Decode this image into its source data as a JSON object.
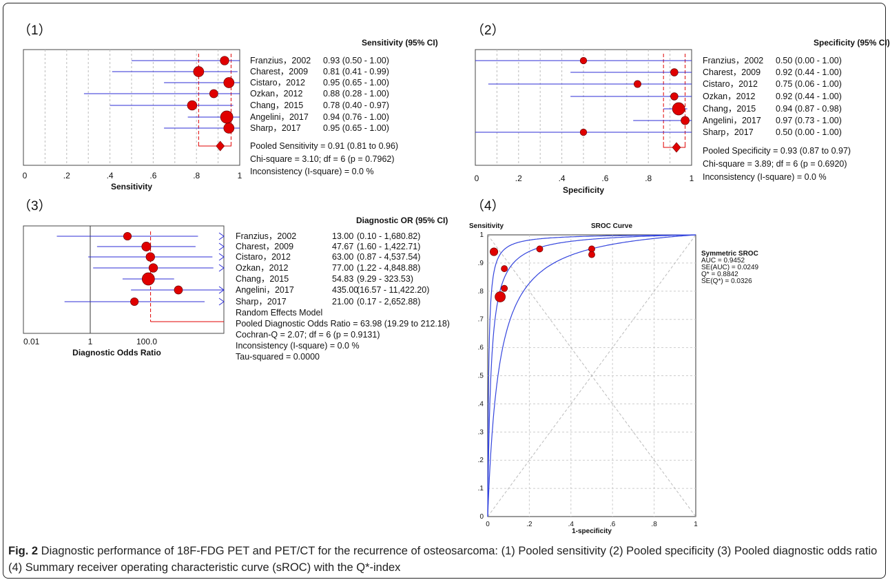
{
  "panels": [
    {
      "label": "（1）",
      "header": "Sensitivity (95% CI)",
      "type": "linear",
      "xlabel": "Sensitivity",
      "ticks": [
        "0",
        ".2",
        ".4",
        ".6",
        ".8",
        "1"
      ],
      "studies": [
        {
          "name": "Franzius，2002",
          "est": 0.93,
          "lo": 0.5,
          "hi": 1.0,
          "weight": 0.55,
          "ci_text": "0.93 (0.50 - 1.00)"
        },
        {
          "name": "Charest，2009",
          "est": 0.81,
          "lo": 0.41,
          "hi": 0.99,
          "weight": 0.75,
          "ci_text": "0.81 (0.41 - 0.99)"
        },
        {
          "name": "Cistaro，2012",
          "est": 0.95,
          "lo": 0.65,
          "hi": 1.0,
          "weight": 0.75,
          "ci_text": "0.95 (0.65 - 1.00)"
        },
        {
          "name": "Ozkan，2012",
          "est": 0.88,
          "lo": 0.28,
          "hi": 1.0,
          "weight": 0.5,
          "ci_text": "0.88 (0.28 - 1.00)"
        },
        {
          "name": "Chang，2015",
          "est": 0.78,
          "lo": 0.4,
          "hi": 0.97,
          "weight": 0.65,
          "ci_text": "0.78 (0.40 - 0.97)"
        },
        {
          "name": "Angelini，2017",
          "est": 0.94,
          "lo": 0.76,
          "hi": 1.0,
          "weight": 1.0,
          "ci_text": "0.94 (0.76 - 1.00)"
        },
        {
          "name": "Sharp，2017",
          "est": 0.95,
          "lo": 0.65,
          "hi": 1.0,
          "weight": 0.75,
          "ci_text": "0.95 (0.65 - 1.00)"
        }
      ],
      "pooled": {
        "est": 0.91,
        "lo": 0.81,
        "hi": 0.96
      },
      "stats": [
        "Pooled Sensitivity = 0.91 (0.81 to 0.96)",
        "Chi-square = 3.10; df =  6 (p = 0.7962)",
        "Inconsistency (I-square) = 0.0 %"
      ]
    },
    {
      "label": "（2）",
      "header": "Specificity (95% CI)",
      "type": "linear",
      "xlabel": "Specificity",
      "ticks": [
        "0",
        ".2",
        ".4",
        ".6",
        ".8",
        "1"
      ],
      "studies": [
        {
          "name": "Franzius，2002",
          "est": 0.5,
          "lo": 0.0,
          "hi": 1.0,
          "weight": 0.3,
          "ci_text": "0.50 (0.00 - 1.00)"
        },
        {
          "name": "Charest，2009",
          "est": 0.92,
          "lo": 0.44,
          "hi": 1.0,
          "weight": 0.4,
          "ci_text": "0.92 (0.44 - 1.00)"
        },
        {
          "name": "Cistaro，2012",
          "est": 0.75,
          "lo": 0.06,
          "hi": 1.0,
          "weight": 0.35,
          "ci_text": "0.75 (0.06 - 1.00)"
        },
        {
          "name": "Ozkan，2012",
          "est": 0.92,
          "lo": 0.44,
          "hi": 1.0,
          "weight": 0.4,
          "ci_text": "0.92 (0.44 - 1.00)"
        },
        {
          "name": "Chang，2015",
          "est": 0.94,
          "lo": 0.87,
          "hi": 0.98,
          "weight": 1.0,
          "ci_text": "0.94 (0.87 - 0.98)"
        },
        {
          "name": "Angelini，2017",
          "est": 0.97,
          "lo": 0.73,
          "hi": 1.0,
          "weight": 0.5,
          "ci_text": "0.97 (0.73 - 1.00)"
        },
        {
          "name": "Sharp，2017",
          "est": 0.5,
          "lo": 0.0,
          "hi": 1.0,
          "weight": 0.3,
          "ci_text": "0.50 (0.00 - 1.00)"
        }
      ],
      "pooled": {
        "est": 0.93,
        "lo": 0.87,
        "hi": 0.97
      },
      "stats": [
        "Pooled Specificity = 0.93 (0.87 to 0.97)",
        "Chi-square = 3.89; df =  6 (p = 0.6920)",
        "Inconsistency (I-square) = 0.0 %"
      ]
    },
    {
      "label": "（3）",
      "header": "Diagnostic OR (95% CI)",
      "type": "log",
      "xlabel": "Diagnostic Odds Ratio",
      "ticks": [
        "0.01",
        "1",
        "100.0"
      ],
      "studies": [
        {
          "name": "Franzius，2002",
          "est": 13.0,
          "lo": 0.1,
          "hi": 1680.82,
          "weight": 0.45,
          "est_text": "13.00",
          "ci_text": "(0.10 - 1,680.82)"
        },
        {
          "name": "Charest，2009",
          "est": 47.67,
          "lo": 1.6,
          "hi": 1422.71,
          "weight": 0.6,
          "est_text": "47.67",
          "ci_text": "(1.60 - 1,422.71)"
        },
        {
          "name": "Cistaro，2012",
          "est": 63.0,
          "lo": 0.87,
          "hi": 4537.54,
          "weight": 0.55,
          "est_text": "63.00",
          "ci_text": "(0.87 - 4,537.54)"
        },
        {
          "name": "Ozkan，2012",
          "est": 77.0,
          "lo": 1.22,
          "hi": 4848.88,
          "weight": 0.55,
          "est_text": "77.00",
          "ci_text": "(1.22 - 4,848.88)"
        },
        {
          "name": "Chang，2015",
          "est": 54.83,
          "lo": 9.29,
          "hi": 323.53,
          "weight": 1.0,
          "est_text": "54.83",
          "ci_text": "(9.29 - 323.53)"
        },
        {
          "name": "Angelini，2017",
          "est": 435.0,
          "lo": 16.57,
          "hi": 11422.2,
          "weight": 0.5,
          "est_text": "435.00",
          "ci_text": "(16.57 - 11,422.20)"
        },
        {
          "name": "Sharp，2017",
          "est": 21.0,
          "lo": 0.17,
          "hi": 2652.88,
          "weight": 0.45,
          "est_text": "21.00",
          "ci_text": "(0.17 - 2,652.88)"
        }
      ],
      "pooled": {
        "est": 63.98,
        "lo": 19.29,
        "hi": 212.18
      },
      "stats": [
        "Random Effects Model",
        "Pooled Diagnostic Odds Ratio = 63.98 (19.29 to 212.18)",
        "Cochran-Q = 2.07; df =  6 (p = 0.9131)",
        "Inconsistency (I-square) = 0.0 %",
        "Tau-squared = 0.0000"
      ]
    }
  ],
  "sroc": {
    "label": "（4）",
    "ylabel": "Sensitivity",
    "title": "SROC Curve",
    "xlabel": "1-specificity",
    "xticks": [
      "0",
      ".2",
      ".4",
      ".6",
      ".8",
      "1"
    ],
    "yticks": [
      "0",
      ".1",
      ".2",
      ".3",
      ".4",
      ".5",
      ".6",
      ".7",
      ".8",
      ".9",
      "1"
    ],
    "points": [
      {
        "x": 0.03,
        "y": 0.94,
        "size": 0.6
      },
      {
        "x": 0.06,
        "y": 0.78,
        "size": 1.0
      },
      {
        "x": 0.08,
        "y": 0.88,
        "size": 0.35
      },
      {
        "x": 0.08,
        "y": 0.81,
        "size": 0.35
      },
      {
        "x": 0.25,
        "y": 0.95,
        "size": 0.35
      },
      {
        "x": 0.5,
        "y": 0.95,
        "size": 0.35
      },
      {
        "x": 0.5,
        "y": 0.93,
        "size": 0.35
      }
    ],
    "curve_dor": 63.98,
    "ci_dor_lo": 19.29,
    "ci_dor_hi": 212.18,
    "stats": [
      "Symmetric SROC",
      "AUC = 0.9452",
      "SE(AUC) = 0.0249",
      "Q* = 0.8842",
      "SE(Q*) = 0.0326"
    ]
  },
  "caption": {
    "label": "Fig. 2",
    "text": " Diagnostic performance of 18F-FDG PET and PET/CT for the recurrence of osteosarcoma: (1) Pooled sensitivity (2) Pooled specificity (3) Pooled diagnostic odds ratio (4) Summary receiver operating characteristic curve (sROC) with the Q*-index"
  },
  "colors": {
    "ci_line": "#2b2bd6",
    "marker": "#e00000",
    "pooled": "#e00000",
    "grid": "#bbbbbb",
    "curve": "#3344dd"
  }
}
